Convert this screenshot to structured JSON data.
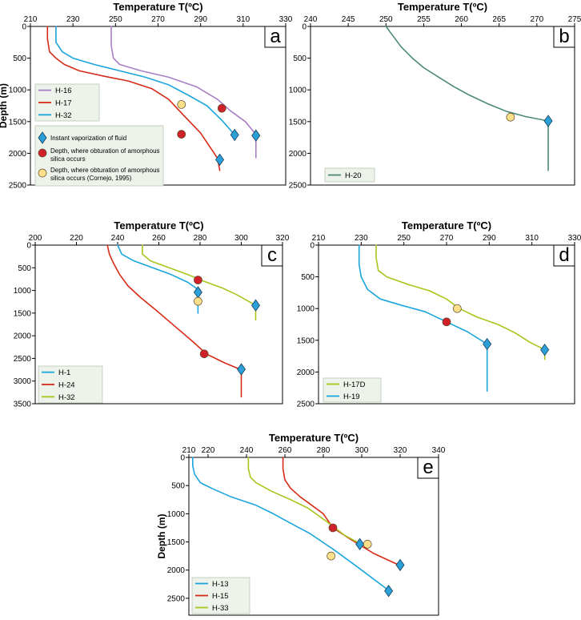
{
  "notes": {
    "vaporization": "Instant vaporization of fluid",
    "obturation_lines": [
      "Depth, where obturation of amorphous",
      "silica occurs"
    ],
    "obturation_cornejo_lines": [
      "Depth, where obturation of amorphous",
      "silica occurs (Cornejo, 1995)"
    ]
  },
  "colors": {
    "diamond": "#2b9fd8",
    "red_circle": "#d0202a",
    "yellow_circle": "#ffe08a"
  },
  "chart_data": [
    {
      "id": "a",
      "type": "line",
      "label": "a",
      "xlabel": "Temperature T(ºC)",
      "ylabel": "Depth (m)",
      "xlim": [
        210,
        330
      ],
      "ylim": [
        0,
        2500
      ],
      "xticks": [
        210,
        230,
        250,
        270,
        290,
        310,
        330
      ],
      "yticks": [
        0,
        500,
        1000,
        1500,
        2000,
        2500
      ],
      "legend_position": "bottom-left",
      "series": [
        {
          "name": "H-16",
          "color": "#a77fc5",
          "points": [
            [
              248,
              0
            ],
            [
              248,
              300
            ],
            [
              249,
              500
            ],
            [
              252,
              600
            ],
            [
              262,
              700
            ],
            [
              275,
              800
            ],
            [
              288,
              950
            ],
            [
              298,
              1150
            ],
            [
              304,
              1330
            ],
            [
              311,
              1500
            ],
            [
              316,
              1700
            ],
            [
              316,
              2070
            ]
          ]
        },
        {
          "name": "H-17",
          "color": "#d72a17",
          "points": [
            [
              218,
              0
            ],
            [
              218,
              200
            ],
            [
              219,
              400
            ],
            [
              222,
              500
            ],
            [
              226,
              600
            ],
            [
              233,
              700
            ],
            [
              244,
              780
            ],
            [
              256,
              860
            ],
            [
              267,
              980
            ],
            [
              275,
              1150
            ],
            [
              282,
              1400
            ],
            [
              290,
              1680
            ],
            [
              298,
              2080
            ],
            [
              299,
              2270
            ]
          ]
        },
        {
          "name": "H-32",
          "color": "#1aa5dd",
          "points": [
            [
              222,
              0
            ],
            [
              222,
              250
            ],
            [
              225,
              400
            ],
            [
              230,
              500
            ],
            [
              240,
              600
            ],
            [
              252,
              700
            ],
            [
              264,
              800
            ],
            [
              275,
              920
            ],
            [
              284,
              1080
            ],
            [
              293,
              1250
            ],
            [
              300,
              1480
            ],
            [
              306,
              1710
            ]
          ]
        }
      ],
      "markers": [
        {
          "kind": "vaporization",
          "x": 316,
          "y": 1720
        },
        {
          "kind": "vaporization",
          "x": 306,
          "y": 1710
        },
        {
          "kind": "vaporization",
          "x": 299,
          "y": 2100
        },
        {
          "kind": "obturation",
          "x": 300,
          "y": 1290
        },
        {
          "kind": "obturation",
          "x": 281,
          "y": 1700
        },
        {
          "kind": "obturation_cornejo",
          "x": 281,
          "y": 1230
        }
      ]
    },
    {
      "id": "b",
      "type": "line",
      "label": "b",
      "xlabel": "Temperature T(ºC)",
      "ylabel": "",
      "xlim": [
        240,
        275
      ],
      "ylim": [
        0,
        2500
      ],
      "xticks": [
        240,
        245,
        250,
        255,
        260,
        265,
        270,
        275
      ],
      "yticks": [
        0,
        500,
        1000,
        1500,
        2000,
        2500
      ],
      "legend_position": "bottom-left",
      "series": [
        {
          "name": "H-20",
          "color": "#4d8a76",
          "points": [
            [
              250,
              0
            ],
            [
              251,
              160
            ],
            [
              252,
              320
            ],
            [
              253.5,
              500
            ],
            [
              255,
              650
            ],
            [
              257,
              800
            ],
            [
              259,
              950
            ],
            [
              261,
              1080
            ],
            [
              263.5,
              1220
            ],
            [
              266,
              1340
            ],
            [
              268.5,
              1420
            ],
            [
              271.5,
              1490
            ],
            [
              271.5,
              2270
            ]
          ]
        }
      ],
      "markers": [
        {
          "kind": "vaporization",
          "x": 271.5,
          "y": 1490
        },
        {
          "kind": "obturation_cornejo",
          "x": 266.5,
          "y": 1430
        }
      ]
    },
    {
      "id": "c",
      "type": "line",
      "label": "c",
      "xlabel": "Temperature T(ºC)",
      "ylabel": "",
      "xlim": [
        200,
        320
      ],
      "ylim": [
        0,
        3500
      ],
      "xticks": [
        200,
        220,
        240,
        260,
        280,
        300,
        320
      ],
      "yticks": [
        0,
        500,
        1000,
        1500,
        2000,
        2500,
        3000,
        3500
      ],
      "legend_position": "bottom-left",
      "series": [
        {
          "name": "H-1",
          "color": "#1aa5dd",
          "points": [
            [
              240,
              0
            ],
            [
              242,
              200
            ],
            [
              248,
              350
            ],
            [
              257,
              500
            ],
            [
              266,
              650
            ],
            [
              274,
              820
            ],
            [
              279,
              980
            ],
            [
              279,
              1500
            ]
          ]
        },
        {
          "name": "H-24",
          "color": "#d72a17",
          "points": [
            [
              235,
              0
            ],
            [
              236,
              200
            ],
            [
              238,
              400
            ],
            [
              241,
              650
            ],
            [
              245,
              900
            ],
            [
              251,
              1150
            ],
            [
              259,
              1450
            ],
            [
              268,
              1800
            ],
            [
              277,
              2150
            ],
            [
              283,
              2400
            ],
            [
              292,
              2600
            ],
            [
              300,
              2750
            ],
            [
              300,
              3350
            ]
          ]
        },
        {
          "name": "H-32",
          "color": "#a9c51c",
          "points": [
            [
              252,
              0
            ],
            [
              252,
              200
            ],
            [
              256,
              350
            ],
            [
              265,
              500
            ],
            [
              274,
              650
            ],
            [
              282,
              800
            ],
            [
              291,
              950
            ],
            [
              298,
              1100
            ],
            [
              307,
              1330
            ],
            [
              307,
              1650
            ]
          ]
        }
      ],
      "markers": [
        {
          "kind": "vaporization",
          "x": 279,
          "y": 1040
        },
        {
          "kind": "vaporization",
          "x": 307,
          "y": 1330
        },
        {
          "kind": "vaporization",
          "x": 300,
          "y": 2740
        },
        {
          "kind": "obturation",
          "x": 279,
          "y": 770
        },
        {
          "kind": "obturation",
          "x": 282,
          "y": 2400
        },
        {
          "kind": "obturation_cornejo",
          "x": 279,
          "y": 1240
        }
      ]
    },
    {
      "id": "d",
      "type": "line",
      "label": "d",
      "xlabel": "Temperature T(ºC)",
      "ylabel": "",
      "xlim": [
        210,
        330
      ],
      "ylim": [
        0,
        2500
      ],
      "xticks": [
        210,
        230,
        250,
        270,
        290,
        310,
        330
      ],
      "yticks": [
        0,
        500,
        1000,
        1500,
        2000,
        2500
      ],
      "legend_position": "bottom-left",
      "series": [
        {
          "name": "H-17D",
          "color": "#a9c51c",
          "points": [
            [
              237,
              0
            ],
            [
              237,
              200
            ],
            [
              238,
              400
            ],
            [
              242,
              500
            ],
            [
              252,
              620
            ],
            [
              262,
              720
            ],
            [
              270,
              850
            ],
            [
              276,
              1000
            ],
            [
              284,
              1130
            ],
            [
              294,
              1250
            ],
            [
              302,
              1380
            ],
            [
              309,
              1530
            ],
            [
              316,
              1650
            ],
            [
              316,
              1800
            ]
          ]
        },
        {
          "name": "H-19",
          "color": "#1aa5dd",
          "points": [
            [
              229,
              0
            ],
            [
              229,
              300
            ],
            [
              230,
              500
            ],
            [
              233,
              700
            ],
            [
              239,
              850
            ],
            [
              249,
              950
            ],
            [
              260,
              1050
            ],
            [
              270,
              1210
            ],
            [
              280,
              1370
            ],
            [
              289,
              1560
            ],
            [
              289,
              2300
            ]
          ]
        }
      ],
      "markers": [
        {
          "kind": "vaporization",
          "x": 289,
          "y": 1560
        },
        {
          "kind": "vaporization",
          "x": 316,
          "y": 1650
        },
        {
          "kind": "obturation",
          "x": 270,
          "y": 1210
        },
        {
          "kind": "obturation_cornejo",
          "x": 275,
          "y": 1000
        }
      ]
    },
    {
      "id": "e",
      "type": "line",
      "label": "e",
      "xlabel": "Temperature T(ºC)",
      "ylabel": "Depth (m)",
      "xlim": [
        210,
        340
      ],
      "ylim": [
        0,
        2800
      ],
      "xticks": [
        210,
        220,
        240,
        260,
        280,
        300,
        320,
        340
      ],
      "yticks": [
        0,
        500,
        1000,
        1500,
        2000,
        2500
      ],
      "legend_position": "bottom-left",
      "series": [
        {
          "name": "H-13",
          "color": "#1aa5dd",
          "points": [
            [
              212,
              0
            ],
            [
              212,
              150
            ],
            [
              213,
              300
            ],
            [
              216,
              450
            ],
            [
              222,
              550
            ],
            [
              232,
              700
            ],
            [
              245,
              850
            ],
            [
              254,
              1000
            ],
            [
              262,
              1150
            ],
            [
              273,
              1350
            ],
            [
              286,
              1650
            ],
            [
              298,
              1950
            ],
            [
              314,
              2360
            ]
          ]
        },
        {
          "name": "H-15",
          "color": "#d72a17",
          "points": [
            [
              259,
              0
            ],
            [
              259,
              200
            ],
            [
              260,
              400
            ],
            [
              263,
              550
            ],
            [
              268,
              700
            ],
            [
              274,
              850
            ],
            [
              280,
              1000
            ],
            [
              285,
              1250
            ],
            [
              294,
              1450
            ],
            [
              306,
              1700
            ],
            [
              320,
              1920
            ]
          ]
        },
        {
          "name": "H-33",
          "color": "#a9c51c",
          "points": [
            [
              241,
              0
            ],
            [
              241,
              200
            ],
            [
              242,
              350
            ],
            [
              245,
              450
            ],
            [
              253,
              600
            ],
            [
              263,
              750
            ],
            [
              272,
              900
            ],
            [
              281,
              1120
            ],
            [
              291,
              1380
            ],
            [
              299,
              1530
            ]
          ]
        }
      ],
      "markers": [
        {
          "kind": "vaporization",
          "x": 299,
          "y": 1540
        },
        {
          "kind": "vaporization",
          "x": 320,
          "y": 1910
        },
        {
          "kind": "vaporization",
          "x": 314,
          "y": 2370
        },
        {
          "kind": "obturation",
          "x": 285,
          "y": 1250
        },
        {
          "kind": "obturation_cornejo",
          "x": 303,
          "y": 1540
        },
        {
          "kind": "obturation_cornejo",
          "x": 284,
          "y": 1750
        }
      ]
    }
  ]
}
